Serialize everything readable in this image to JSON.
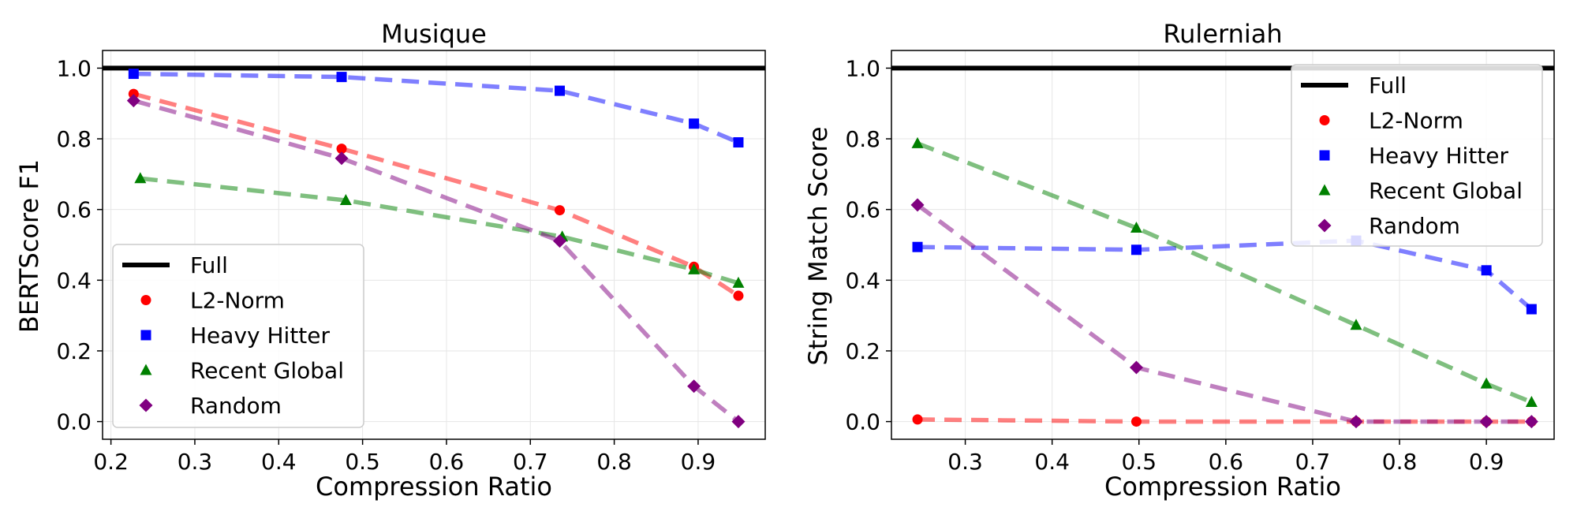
{
  "chart_data": [
    {
      "type": "line",
      "title": "Musique",
      "xlabel": "Compression Ratio",
      "ylabel": "BERTScore F1",
      "xlim": [
        0.19,
        0.98
      ],
      "ylim": [
        -0.05,
        1.05
      ],
      "xticks": [
        "0.2",
        "0.3",
        "0.4",
        "0.5",
        "0.6",
        "0.7",
        "0.8",
        "0.9"
      ],
      "yticks": [
        "0.0",
        "0.2",
        "0.4",
        "0.6",
        "0.8",
        "1.0"
      ],
      "grid": true,
      "legend_position": "lower-left",
      "full_line": {
        "name": "Full",
        "y": 1.0
      },
      "series": [
        {
          "name": "L2-Norm",
          "color": "#ff0000",
          "marker": "circle",
          "x": [
            0.227,
            0.475,
            0.735,
            0.895,
            0.948
          ],
          "y": [
            0.927,
            0.772,
            0.598,
            0.438,
            0.356
          ]
        },
        {
          "name": "Heavy Hitter",
          "color": "#0000ff",
          "marker": "square",
          "x": [
            0.227,
            0.475,
            0.735,
            0.895,
            0.948
          ],
          "y": [
            0.984,
            0.975,
            0.936,
            0.843,
            0.79
          ]
        },
        {
          "name": "Recent Global",
          "color": "#008000",
          "marker": "triangle",
          "x": [
            0.235,
            0.48,
            0.738,
            0.895,
            0.948
          ],
          "y": [
            0.688,
            0.626,
            0.523,
            0.43,
            0.392
          ]
        },
        {
          "name": "Random",
          "color": "#800080",
          "marker": "diamond",
          "x": [
            0.227,
            0.475,
            0.735,
            0.895,
            0.948
          ],
          "y": [
            0.908,
            0.745,
            0.511,
            0.1,
            0.0
          ]
        }
      ]
    },
    {
      "type": "line",
      "title": "Rulerniah",
      "xlabel": "Compression Ratio",
      "ylabel": "String Match Score",
      "xlim": [
        0.215,
        0.978
      ],
      "ylim": [
        -0.05,
        1.05
      ],
      "xticks": [
        "0.3",
        "0.4",
        "0.5",
        "0.6",
        "0.7",
        "0.8",
        "0.9"
      ],
      "yticks": [
        "0.0",
        "0.2",
        "0.4",
        "0.6",
        "0.8",
        "1.0"
      ],
      "grid": true,
      "legend_position": "upper-right",
      "full_line": {
        "name": "Full",
        "y": 1.0
      },
      "series": [
        {
          "name": "L2-Norm",
          "color": "#ff0000",
          "marker": "circle",
          "x": [
            0.245,
            0.497,
            0.75,
            0.9,
            0.952
          ],
          "y": [
            0.006,
            0.0,
            0.0,
            0.0,
            0.0
          ]
        },
        {
          "name": "Heavy Hitter",
          "color": "#0000ff",
          "marker": "square",
          "x": [
            0.245,
            0.497,
            0.75,
            0.9,
            0.952
          ],
          "y": [
            0.494,
            0.486,
            0.512,
            0.428,
            0.318
          ]
        },
        {
          "name": "Recent Global",
          "color": "#008000",
          "marker": "triangle",
          "x": [
            0.245,
            0.497,
            0.75,
            0.9,
            0.952
          ],
          "y": [
            0.787,
            0.548,
            0.273,
            0.107,
            0.055
          ]
        },
        {
          "name": "Random",
          "color": "#800080",
          "marker": "diamond",
          "x": [
            0.245,
            0.497,
            0.75,
            0.9,
            0.952
          ],
          "y": [
            0.613,
            0.153,
            0.0,
            0.0,
            0.0
          ]
        }
      ]
    }
  ]
}
